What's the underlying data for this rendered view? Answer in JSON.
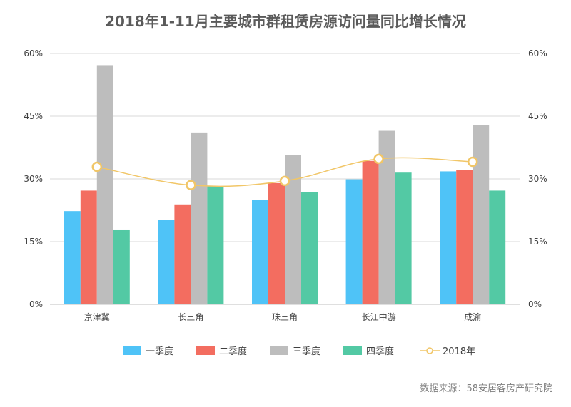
{
  "chart_data": {
    "type": "bar",
    "title": "2018年1-11月主要城市群租赁房源访问量同比增长情况",
    "categories": [
      "京津冀",
      "长三角",
      "珠三角",
      "长江中游",
      "成渝"
    ],
    "series": [
      {
        "name": "一季度",
        "type": "bar",
        "color": "#4fc3f7",
        "values": [
          22.3,
          20.2,
          24.9,
          29.9,
          31.8
        ]
      },
      {
        "name": "二季度",
        "type": "bar",
        "color": "#f36d60",
        "values": [
          27.2,
          23.9,
          29.0,
          34.3,
          32.1
        ]
      },
      {
        "name": "三季度",
        "type": "bar",
        "color": "#bdbdbd",
        "values": [
          57.2,
          41.1,
          35.7,
          41.5,
          42.8
        ]
      },
      {
        "name": "四季度",
        "type": "bar",
        "color": "#53c9a4",
        "values": [
          17.9,
          28.2,
          26.9,
          31.5,
          27.2
        ]
      },
      {
        "name": "2018年",
        "type": "line",
        "color": "#f1c667",
        "values": [
          32.9,
          28.5,
          29.5,
          34.8,
          34.1
        ]
      }
    ],
    "y_ticks": [
      "0%",
      "15%",
      "30%",
      "45%",
      "60%"
    ],
    "y2_ticks": [
      "0%",
      "15%",
      "30%",
      "45%",
      "60%"
    ],
    "ylim": [
      0,
      60
    ],
    "y2lim": [
      0,
      60
    ],
    "grid": true,
    "legend_position": "bottom",
    "source": "数据来源：58安居客房产研究院"
  }
}
